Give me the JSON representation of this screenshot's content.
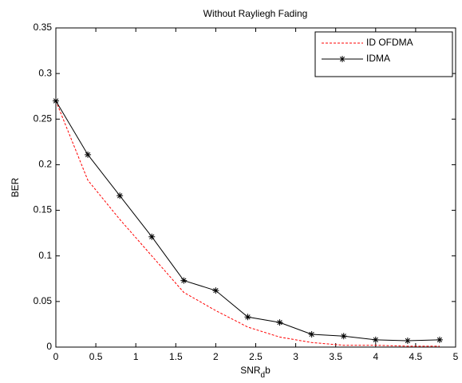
{
  "chart_data": {
    "type": "line",
    "title": "Without Rayliegh Fading",
    "xlabel": [
      "SNR",
      "d",
      "b"
    ],
    "ylabel": "BER",
    "x": [
      0,
      0.4,
      0.8,
      1.2,
      1.6,
      2.0,
      2.4,
      2.8,
      3.2,
      3.6,
      4.0,
      4.4,
      4.8
    ],
    "series": [
      {
        "name": "ID OFDMA",
        "color": "#ff0000",
        "line_style": "dashed",
        "marker": null,
        "values": [
          0.27,
          0.183,
          0.14,
          0.1,
          0.06,
          0.04,
          0.022,
          0.011,
          0.005,
          0.002,
          0.002,
          0.001,
          0.001
        ]
      },
      {
        "name": "IDMA",
        "color": "#000000",
        "line_style": "solid",
        "marker": "*",
        "values": [
          0.27,
          0.211,
          0.166,
          0.121,
          0.073,
          0.062,
          0.033,
          0.027,
          0.014,
          0.012,
          0.008,
          0.007,
          0.008
        ]
      }
    ],
    "xlim": [
      0,
      5
    ],
    "xticks": [
      0,
      0.5,
      1,
      1.5,
      2,
      2.5,
      3,
      3.5,
      4,
      4.5,
      5
    ],
    "ylim": [
      0,
      0.35
    ],
    "yticks": [
      0,
      0.05,
      0.1,
      0.15,
      0.2,
      0.25,
      0.3,
      0.35
    ],
    "grid": false,
    "legend": "northeast"
  }
}
